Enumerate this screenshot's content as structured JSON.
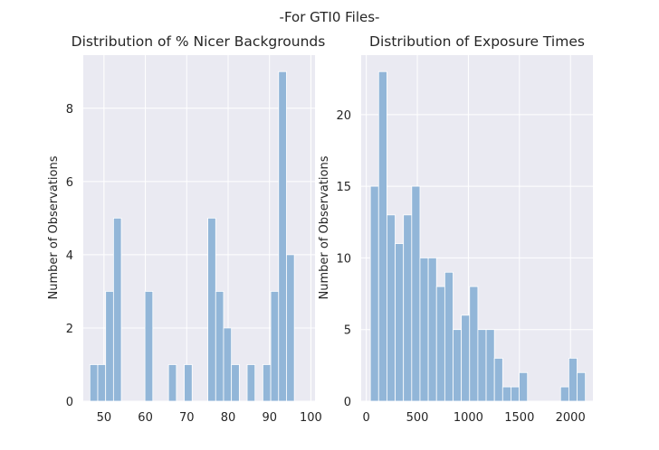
{
  "figure": {
    "suptitle": "-For GTI0 Files-"
  },
  "colors": {
    "plot_bg": "#eaeaf2",
    "grid": "#ffffff",
    "bar_fill": "#92b6d8",
    "bar_edge": "#ffffff",
    "text": "#262626"
  },
  "chart_data": [
    {
      "type": "bar",
      "subtype": "histogram",
      "title": "Distribution of % Nicer Backgrounds",
      "xlabel": "",
      "ylabel": "Number of Observations",
      "xlim": [
        45,
        101
      ],
      "ylim": [
        0,
        9.45
      ],
      "xticks": [
        50,
        60,
        70,
        80,
        90,
        100
      ],
      "yticks": [
        0,
        2,
        4,
        6,
        8
      ],
      "grid": true,
      "bin_edges": [
        46.6,
        48.5,
        50.4,
        52.3,
        54.2,
        56.1,
        58.0,
        59.9,
        61.8,
        63.7,
        65.6,
        67.5,
        69.4,
        71.3,
        73.2,
        75.1,
        77.0,
        78.9,
        80.8,
        82.7,
        84.6,
        86.5,
        88.4,
        90.3,
        92.2,
        94.1,
        96.0,
        97.9
      ],
      "values": [
        1,
        1,
        3,
        5,
        0,
        0,
        0,
        3,
        0,
        0,
        1,
        0,
        1,
        0,
        0,
        5,
        3,
        2,
        1,
        0,
        1,
        0,
        1,
        3,
        9,
        4,
        0
      ]
    },
    {
      "type": "bar",
      "subtype": "histogram",
      "title": "Distribution of Exposure Times",
      "xlabel": "",
      "ylabel": "Number of Observations",
      "xlim": [
        -50,
        2220
      ],
      "ylim": [
        0,
        24.15
      ],
      "xticks": [
        0,
        500,
        1000,
        1500,
        2000
      ],
      "yticks": [
        0,
        5,
        10,
        15,
        20
      ],
      "grid": true,
      "bin_edges": [
        40,
        121,
        202,
        283,
        364,
        445,
        526,
        607,
        688,
        769,
        850,
        931,
        1012,
        1093,
        1174,
        1255,
        1336,
        1417,
        1498,
        1579,
        1660,
        1741,
        1822,
        1903,
        1984,
        2065,
        2146
      ],
      "values": [
        15,
        23,
        13,
        11,
        13,
        15,
        10,
        10,
        8,
        9,
        5,
        6,
        8,
        5,
        5,
        3,
        1,
        1,
        2,
        0,
        0,
        0,
        0,
        1,
        3,
        2
      ]
    }
  ]
}
